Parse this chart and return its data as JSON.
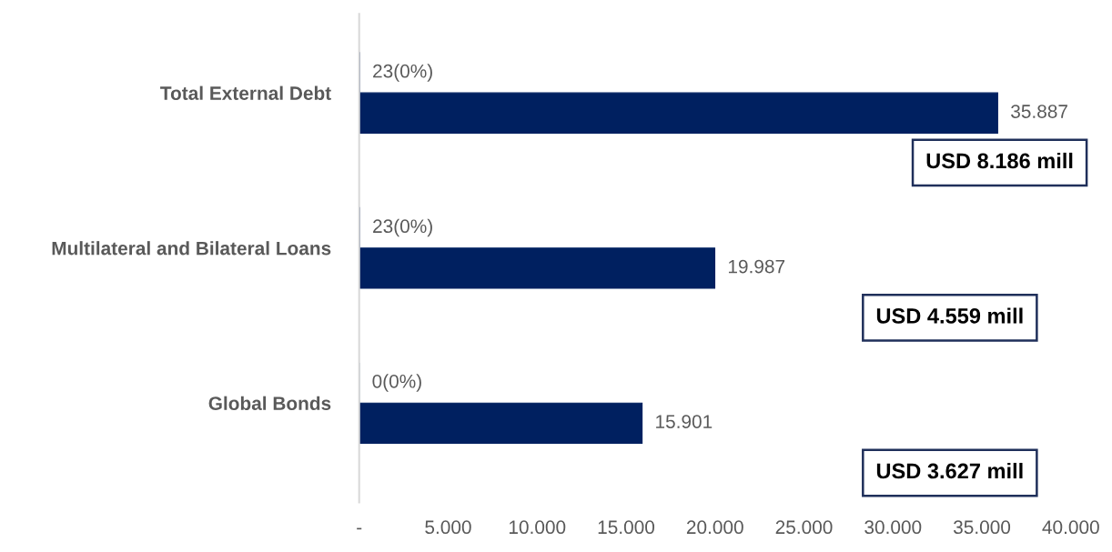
{
  "chart_data": {
    "type": "bar",
    "orientation": "horizontal",
    "categories": [
      "Total External Debt",
      "Multilateral and Bilateral Loans",
      "Global Bonds"
    ],
    "series": [
      {
        "color": "#002060",
        "values": [
          23,
          23,
          0
        ],
        "value_labels": [
          "23(0%)",
          "23(0%)",
          "0(0%)"
        ]
      },
      {
        "color": "#002060",
        "values": [
          35887,
          19987,
          15901
        ],
        "value_labels": [
          "35.887",
          "19.987",
          "15.901"
        ]
      }
    ],
    "xlim": [
      0,
      40000
    ],
    "xticks": [
      {
        "value": 0,
        "label": "-"
      },
      {
        "value": 5000,
        "label": "5.000"
      },
      {
        "value": 10000,
        "label": "10.000"
      },
      {
        "value": 15000,
        "label": "15.000"
      },
      {
        "value": 20000,
        "label": "20.000"
      },
      {
        "value": 25000,
        "label": "25.000"
      },
      {
        "value": 30000,
        "label": "30.000"
      },
      {
        "value": 35000,
        "label": "35.000"
      },
      {
        "value": 40000,
        "label": "40.000"
      }
    ],
    "grid": false,
    "legend": false,
    "annotations": [
      "USD 8.186 mill",
      "USD 4.559 mill",
      "USD 3.627 mill"
    ]
  }
}
